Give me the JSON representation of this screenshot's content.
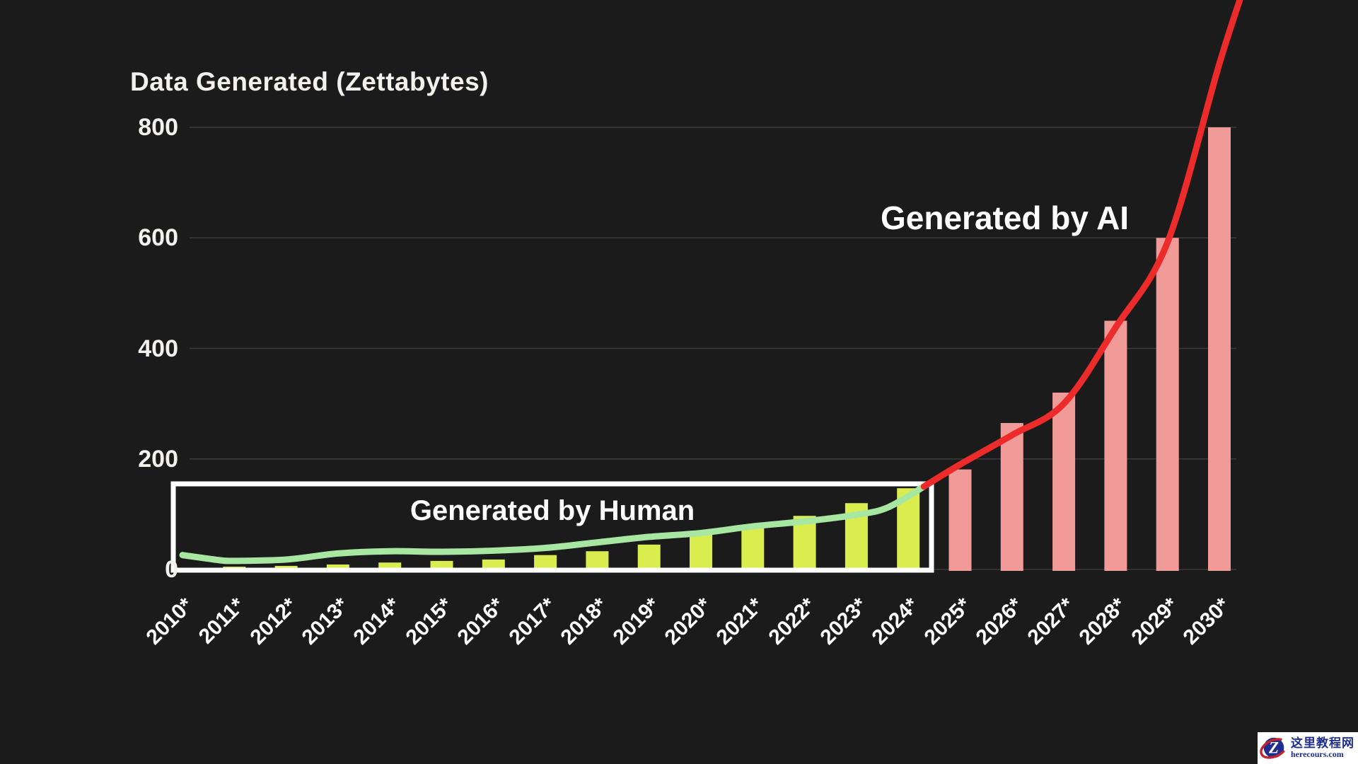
{
  "title": "Data Generated (Zettabytes)",
  "colors": {
    "background": "#1c1b1b",
    "grid": "#3c3b3b",
    "text": "#f2f1ee",
    "human_bar": "#d9ed4e",
    "ai_bar": "#f09b98",
    "human_line": "#a8e7a2",
    "ai_line": "#ed2b2b",
    "box_border": "#ffffff",
    "watermark_navy": "#1f2e8e",
    "watermark_red": "#c62329"
  },
  "watermark": {
    "line1": "这里教程网",
    "line2": "herecours.com",
    "logo_letter": "Z"
  },
  "chart_data": {
    "type": "bar",
    "title": "Data Generated (Zettabytes)",
    "unit": "Zettabytes",
    "grid": true,
    "ylim": [
      0,
      800
    ],
    "yticks": [
      800,
      600,
      400,
      200,
      0
    ],
    "categories": [
      "2010*",
      "2011*",
      "2012*",
      "2013*",
      "2014*",
      "2015*",
      "2016*",
      "2017*",
      "2018*",
      "2019*",
      "2020*",
      "2021*",
      "2022*",
      "2023*",
      "2024*",
      "2025*",
      "2026*",
      "2027*",
      "2028*",
      "2029*",
      "2030*"
    ],
    "series": [
      {
        "name": "Generated by Human",
        "type": "bar",
        "color": "#d9ed4e",
        "start_index": 0,
        "values": [
          2,
          5,
          6.5,
          9,
          12.5,
          15.5,
          18,
          26,
          33,
          45,
          64,
          79,
          97,
          120,
          147
        ]
      },
      {
        "name": "Generated by AI",
        "type": "bar",
        "color": "#f09b98",
        "start_index": 15,
        "values": [
          181,
          265,
          320,
          450,
          600,
          800
        ]
      },
      {
        "name": "Generated by Human (trend line)",
        "type": "line",
        "color": "#a8e7a2",
        "points": [
          [
            0,
            26
          ],
          [
            0.7,
            17
          ],
          [
            1,
            15.5
          ],
          [
            2,
            18
          ],
          [
            3,
            29
          ],
          [
            4,
            33
          ],
          [
            5,
            32
          ],
          [
            6,
            34
          ],
          [
            7,
            39
          ],
          [
            8,
            49
          ],
          [
            9,
            59
          ],
          [
            10,
            66
          ],
          [
            11,
            78
          ],
          [
            12,
            87
          ],
          [
            13,
            99
          ],
          [
            13.6,
            112
          ],
          [
            14.3,
            150
          ]
        ]
      },
      {
        "name": "Generated by AI (trend line)",
        "type": "line",
        "color": "#ed2b2b",
        "points": [
          [
            14.3,
            150
          ],
          [
            15,
            190
          ],
          [
            16,
            243
          ],
          [
            17,
            300
          ],
          [
            18,
            438
          ],
          [
            19,
            592
          ],
          [
            20,
            915
          ],
          [
            20.5,
            1060
          ]
        ]
      }
    ],
    "annotations": [
      {
        "text": "Generated by Human",
        "color": "#ffffff"
      },
      {
        "text": "Generated by AI",
        "color": "#ffffff"
      }
    ],
    "highlight_box": {
      "label": "Generated by Human",
      "x_range": [
        "2010*",
        "2024*"
      ],
      "y_max": 160,
      "border_color": "#ffffff"
    }
  }
}
